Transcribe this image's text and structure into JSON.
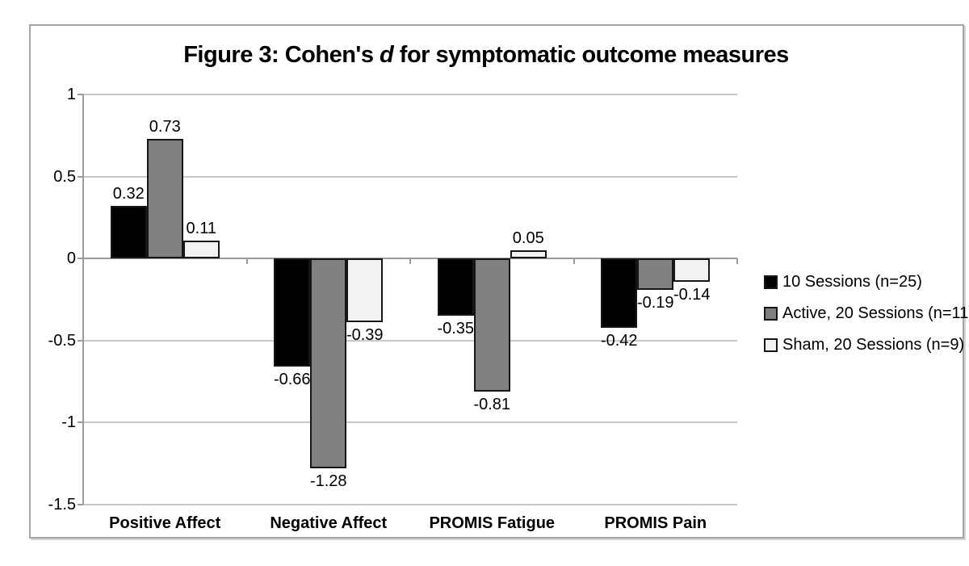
{
  "figure": {
    "title": {
      "prefix": "Figure 3: Cohen's ",
      "italic": "d",
      "suffix": " for symptomatic outcome measures"
    }
  },
  "chart_data": {
    "type": "bar",
    "title": "Figure 3: Cohen's d for symptomatic outcome measures",
    "categories": [
      "Positive Affect",
      "Negative Affect",
      "PROMIS Fatigue",
      "PROMIS Pain"
    ],
    "series": [
      {
        "name": "10 Sessions (n=25)",
        "color": "#000000",
        "values": [
          0.32,
          -0.66,
          -0.35,
          -0.42
        ]
      },
      {
        "name": "Active, 20 Sessions (n=11)",
        "color": "#808080",
        "values": [
          0.73,
          -1.28,
          -0.81,
          -0.19
        ]
      },
      {
        "name": "Sham, 20 Sessions (n=9)",
        "color": "#f2f2f2",
        "values": [
          0.11,
          -0.39,
          0.05,
          -0.14
        ]
      }
    ],
    "ylim": [
      -1.5,
      1
    ],
    "yticks": [
      1,
      0.5,
      0,
      -0.5,
      -1,
      -1.5
    ],
    "ytick_labels": [
      "1",
      "0.5",
      "0",
      "-0.5",
      "-1",
      "-1.5"
    ],
    "xlabel": "",
    "ylabel": "",
    "grid": true,
    "data_labels": true,
    "legend_position": "right",
    "gridline_color": "#c9c9c9",
    "axis_color": "#9b9b9b"
  }
}
